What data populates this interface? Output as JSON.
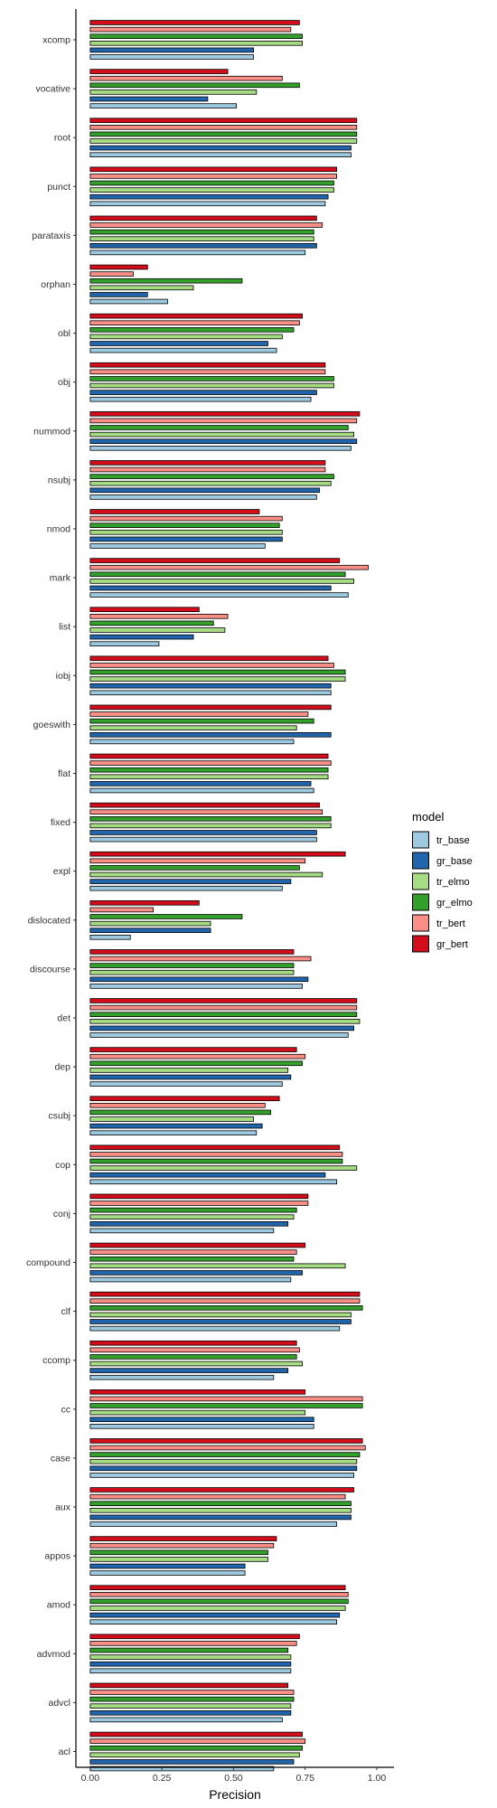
{
  "chart_data": {
    "type": "bar",
    "orientation": "horizontal",
    "xlabel": "Precision",
    "ylabel": "",
    "xlim": [
      -0.05,
      1.06
    ],
    "xticks": [
      0.0,
      0.25,
      0.5,
      0.75,
      1.0
    ],
    "xtick_labels": [
      "0.00",
      "0.25",
      "0.50",
      "0.75",
      "1.00"
    ],
    "grid": false,
    "legend": {
      "title": "model",
      "placement": "right"
    },
    "categories": [
      "xcomp",
      "vocative",
      "root",
      "punct",
      "parataxis",
      "orphan",
      "obl",
      "obj",
      "nummod",
      "nsubj",
      "nmod",
      "mark",
      "list",
      "iobj",
      "goeswith",
      "flat",
      "fixed",
      "expl",
      "dislocated",
      "discourse",
      "det",
      "dep",
      "csubj",
      "cop",
      "conj",
      "compound",
      "clf",
      "ccomp",
      "cc",
      "case",
      "aux",
      "appos",
      "amod",
      "advmod",
      "advcl",
      "acl"
    ],
    "series": [
      {
        "name": "tr_base",
        "color": "#9ecae1",
        "values": [
          0.57,
          0.51,
          0.91,
          0.82,
          0.75,
          0.27,
          0.65,
          0.77,
          0.91,
          0.79,
          0.61,
          0.9,
          0.24,
          0.84,
          0.71,
          0.78,
          0.79,
          0.67,
          0.14,
          0.74,
          0.9,
          0.67,
          0.58,
          0.86,
          0.64,
          0.7,
          0.87,
          0.64,
          0.78,
          0.92,
          0.86,
          0.54,
          0.86,
          0.7,
          0.67,
          0.64
        ]
      },
      {
        "name": "gr_base",
        "color": "#2166ac",
        "values": [
          0.57,
          0.41,
          0.91,
          0.83,
          0.79,
          0.2,
          0.62,
          0.79,
          0.93,
          0.8,
          0.67,
          0.84,
          0.36,
          0.84,
          0.84,
          0.77,
          0.79,
          0.7,
          0.42,
          0.76,
          0.92,
          0.7,
          0.6,
          0.82,
          0.69,
          0.74,
          0.91,
          0.69,
          0.78,
          0.93,
          0.91,
          0.54,
          0.87,
          0.7,
          0.7,
          0.71
        ]
      },
      {
        "name": "tr_elmo",
        "color": "#a6dc84",
        "values": [
          0.74,
          0.58,
          0.93,
          0.85,
          0.78,
          0.36,
          0.67,
          0.85,
          0.92,
          0.84,
          0.67,
          0.92,
          0.47,
          0.89,
          0.72,
          0.83,
          0.84,
          0.81,
          0.42,
          0.71,
          0.94,
          0.69,
          0.57,
          0.93,
          0.71,
          0.89,
          0.91,
          0.74,
          0.75,
          0.93,
          0.91,
          0.62,
          0.89,
          0.7,
          0.7,
          0.73
        ]
      },
      {
        "name": "gr_elmo",
        "color": "#33a02c",
        "values": [
          0.74,
          0.73,
          0.93,
          0.85,
          0.78,
          0.53,
          0.71,
          0.85,
          0.9,
          0.85,
          0.66,
          0.89,
          0.43,
          0.89,
          0.78,
          0.83,
          0.84,
          0.73,
          0.53,
          0.71,
          0.93,
          0.74,
          0.63,
          0.88,
          0.72,
          0.71,
          0.95,
          0.72,
          0.95,
          0.94,
          0.91,
          0.62,
          0.9,
          0.69,
          0.71,
          0.74
        ]
      },
      {
        "name": "tr_bert",
        "color": "#fb8f87",
        "values": [
          0.7,
          0.67,
          0.93,
          0.86,
          0.81,
          0.15,
          0.73,
          0.82,
          0.93,
          0.82,
          0.67,
          0.97,
          0.48,
          0.85,
          0.76,
          0.84,
          0.81,
          0.75,
          0.22,
          0.77,
          0.93,
          0.75,
          0.61,
          0.88,
          0.76,
          0.72,
          0.94,
          0.73,
          0.95,
          0.96,
          0.89,
          0.64,
          0.9,
          0.72,
          0.71,
          0.75
        ]
      },
      {
        "name": "gr_bert",
        "color": "#d40d1b",
        "values": [
          0.73,
          0.48,
          0.93,
          0.86,
          0.79,
          0.2,
          0.74,
          0.82,
          0.94,
          0.82,
          0.59,
          0.87,
          0.38,
          0.83,
          0.84,
          0.83,
          0.8,
          0.89,
          0.38,
          0.71,
          0.93,
          0.72,
          0.66,
          0.87,
          0.76,
          0.75,
          0.94,
          0.72,
          0.75,
          0.95,
          0.92,
          0.65,
          0.89,
          0.73,
          0.69,
          0.74
        ]
      }
    ]
  }
}
